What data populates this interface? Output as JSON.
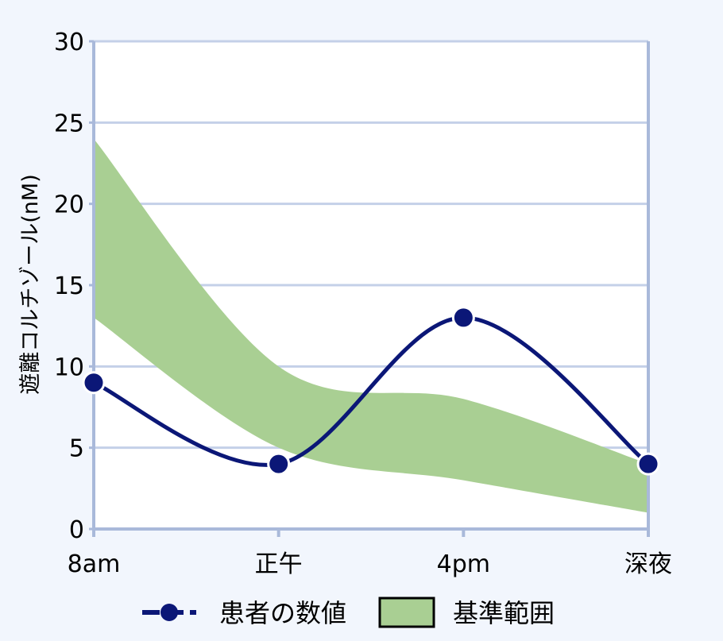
{
  "chart_data": {
    "type": "line",
    "title": "",
    "xlabel": "",
    "ylabel": "遊離コルチゾール(nM)",
    "categories": [
      "8am",
      "正午",
      "4pm",
      "深夜"
    ],
    "ylim": [
      0,
      30
    ],
    "yticks": [
      0,
      5,
      10,
      15,
      20,
      25,
      30
    ],
    "grid": true,
    "legend_placement": "bottom",
    "series": [
      {
        "name": "患者の数値",
        "type": "line",
        "values": [
          9,
          4,
          13,
          4
        ]
      },
      {
        "name": "基準範囲",
        "type": "band",
        "lower": [
          13,
          5,
          3,
          1
        ],
        "upper": [
          24,
          10,
          8,
          4
        ]
      }
    ],
    "colors": {
      "line": "#0b1777",
      "band": "#a9cf93",
      "grid": "#c4d0e8",
      "axis": "#a9b9da",
      "plot_bg": "#ffffff",
      "page_bg": "#f2f6fd"
    }
  }
}
